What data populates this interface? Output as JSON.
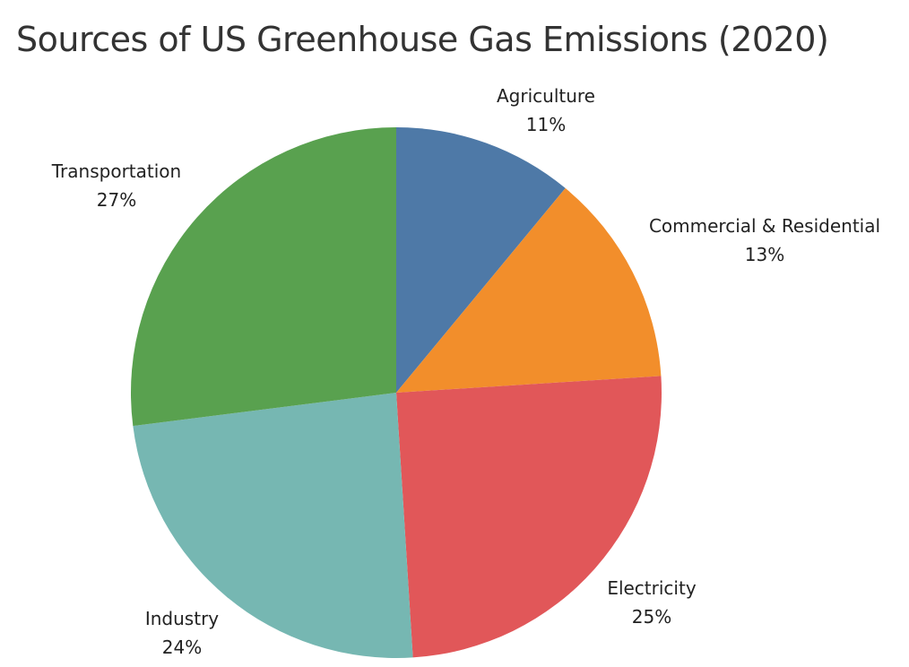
{
  "chart_data": {
    "type": "pie",
    "title": "Sources of US Greenhouse Gas Emissions (2020)",
    "start_angle_deg": 0,
    "direction": "clockwise",
    "slices": [
      {
        "category": "Agriculture",
        "value": 11,
        "label": "11%",
        "color": "#4e79a7"
      },
      {
        "category": "Commercial & Residential",
        "value": 13,
        "label": "13%",
        "color": "#f28e2b"
      },
      {
        "category": "Electricity",
        "value": 25,
        "label": "25%",
        "color": "#e15759"
      },
      {
        "category": "Industry",
        "value": 24,
        "label": "24%",
        "color": "#76b7b2"
      },
      {
        "category": "Transportation",
        "value": 27,
        "label": "27%",
        "color": "#59a14f"
      }
    ]
  }
}
